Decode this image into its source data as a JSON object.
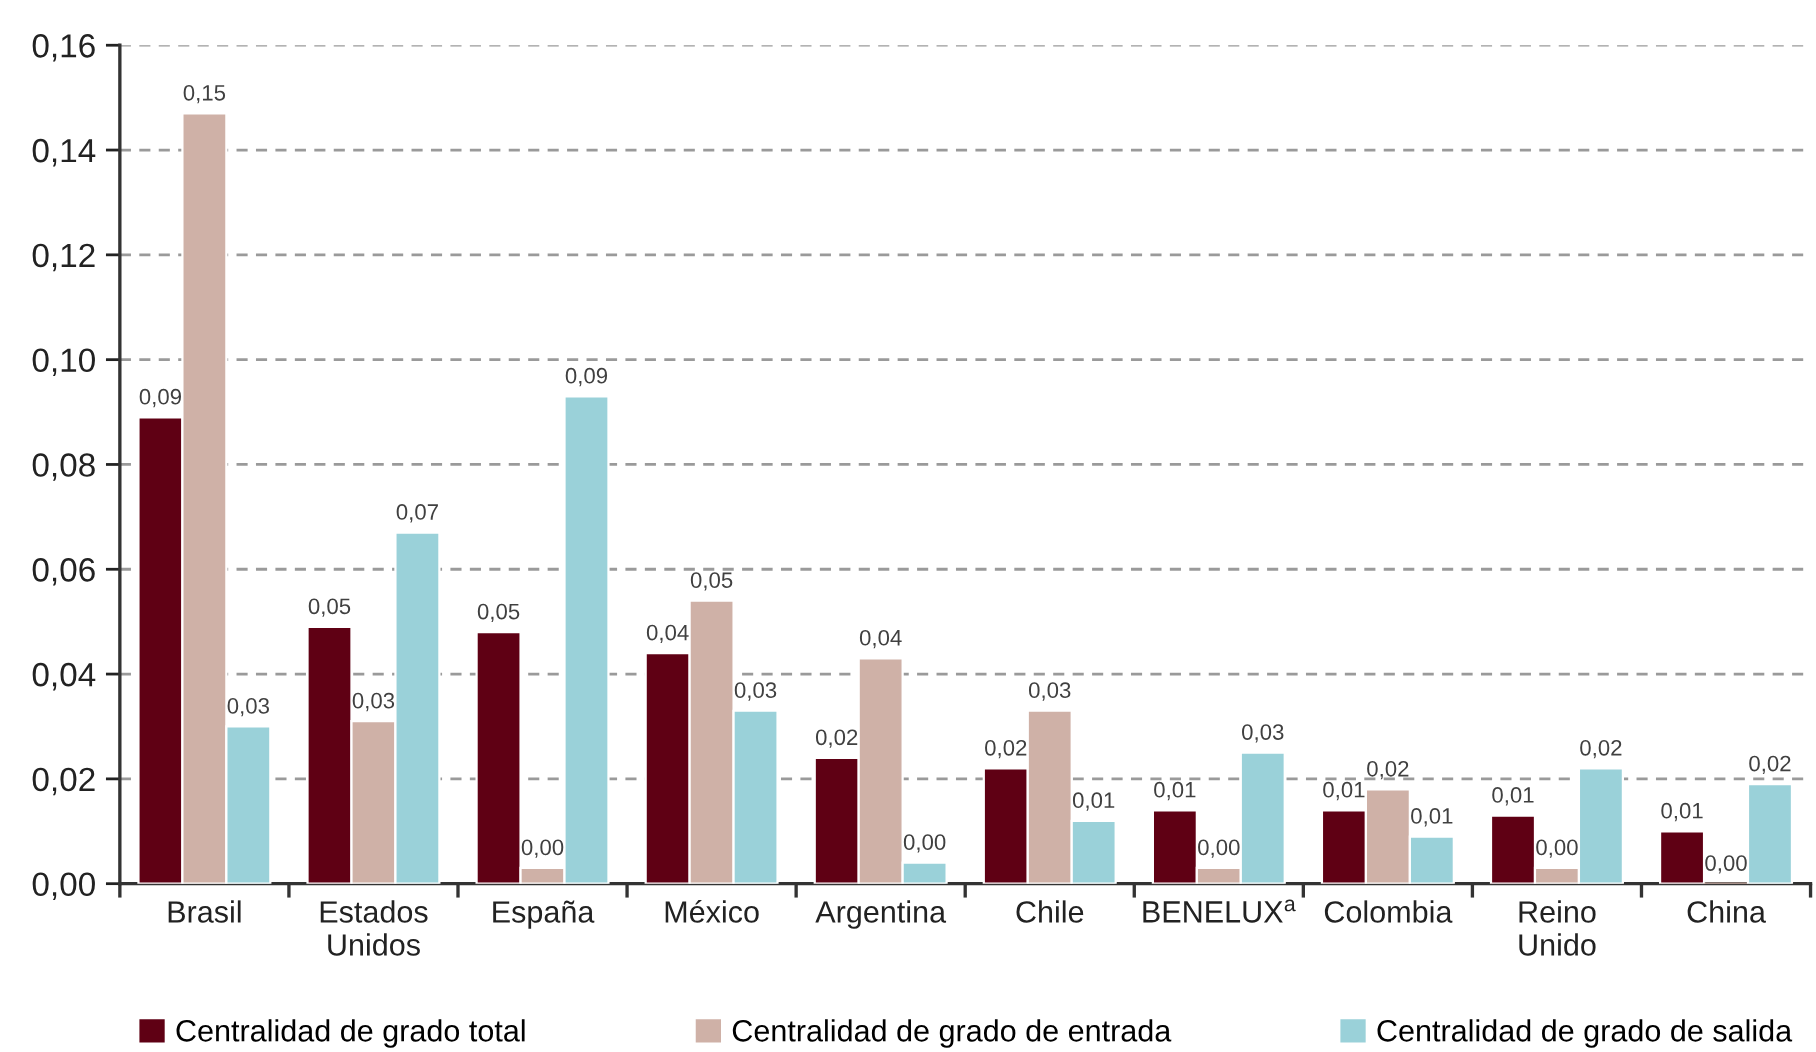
{
  "chart_data": {
    "type": "bar",
    "categories": [
      "Brasil",
      "Estados\nUnidos",
      "España",
      "México",
      "Argentina",
      "Chile",
      "BENELUX$^{a}$",
      "Colombia",
      "Reino\nUnido",
      "China"
    ],
    "series": [
      {
        "name": "Centralidad de grado total",
        "color": "#5f0014",
        "values": [
          0.089,
          0.049,
          0.048,
          0.044,
          0.024,
          0.022,
          0.014,
          0.014,
          0.013,
          0.01
        ],
        "value_labels": [
          "0,09",
          "0,05",
          "0,05",
          "0,04",
          "0,02",
          "0,02",
          "0,01",
          "0,01",
          "0,01",
          "0,01"
        ]
      },
      {
        "name": "Centralidad de grado de entrada",
        "color": "#cfb1a7",
        "values": [
          0.147,
          0.031,
          0.003,
          0.054,
          0.043,
          0.033,
          0.003,
          0.018,
          0.003,
          0.0
        ],
        "value_labels": [
          "0,15",
          "0,03",
          "0,00",
          "0,05",
          "0,04",
          "0,03",
          "0,00",
          "0,02",
          "0,00",
          "0,00"
        ]
      },
      {
        "name": "Centralidad de grado de salida",
        "color": "#9ad1d9",
        "values": [
          0.03,
          0.067,
          0.093,
          0.033,
          0.004,
          0.012,
          0.025,
          0.009,
          0.022,
          0.019
        ],
        "value_labels": [
          "0,03",
          "0,07",
          "0,09",
          "0,03",
          "0,00",
          "0,01",
          "0,03",
          "0,01",
          "0,02",
          "0,02"
        ]
      }
    ],
    "ylim": [
      0,
      0.16
    ],
    "yticks": [
      {
        "value": 0,
        "label": "0,00"
      },
      {
        "value": 0.02,
        "label": "0,02"
      },
      {
        "value": 0.04,
        "label": "0,04"
      },
      {
        "value": 0.06,
        "label": "0,06"
      },
      {
        "value": 0.08,
        "label": "0,08"
      },
      {
        "value": 0.1,
        "label": "0,10"
      },
      {
        "value": 0.12,
        "label": "0,12"
      },
      {
        "value": 0.14,
        "label": "0,14"
      },
      {
        "value": 0.16,
        "label": "0,16"
      }
    ],
    "grid": "y",
    "legend": "bottom"
  }
}
